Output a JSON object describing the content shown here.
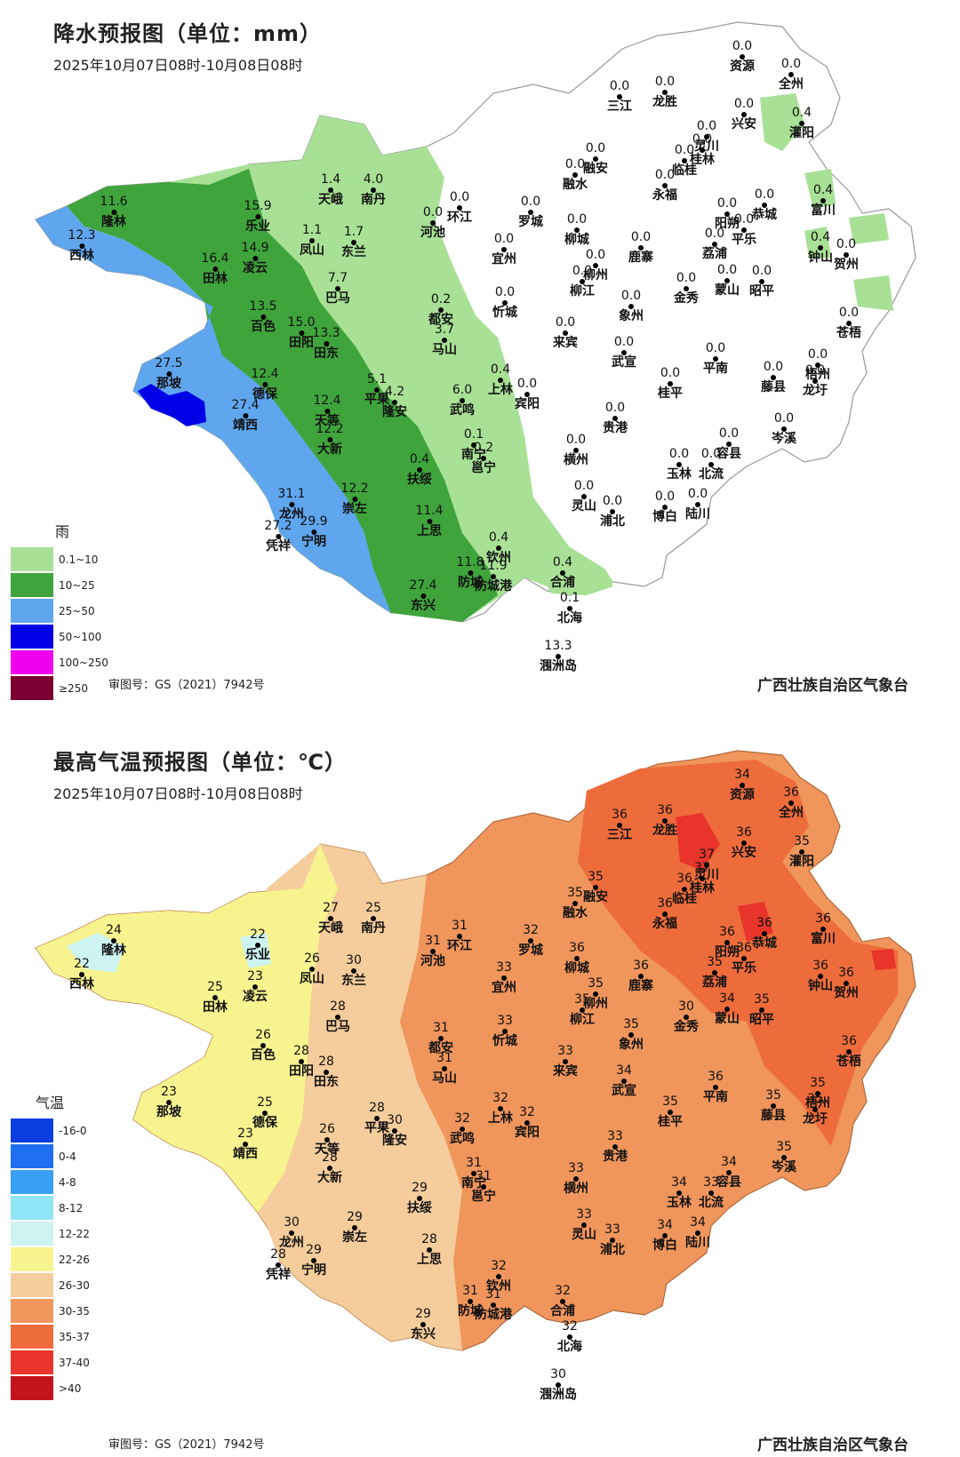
{
  "rain": {
    "title": "降水预报图（单位：mm）",
    "date": "2025年10月07日08时-10月08日08时",
    "legend_title": "雨",
    "legend": [
      {
        "label": "0.1~10",
        "color": "#a8e195"
      },
      {
        "label": "10~25",
        "color": "#3fa43c"
      },
      {
        "label": "25~50",
        "color": "#5fa6ee"
      },
      {
        "label": "50~100",
        "color": "#0000e6"
      },
      {
        "label": "100~250",
        "color": "#f000f0"
      },
      {
        "label": "≥250",
        "color": "#7b0032"
      }
    ],
    "approval": "审图号：GS（2021）7942号",
    "agency": "广西壮族自治区气象台",
    "stations": [
      {
        "name": "资源",
        "value": "0.0"
      },
      {
        "name": "全州",
        "value": "0.0"
      },
      {
        "name": "三江",
        "value": "0.0"
      },
      {
        "name": "龙胜",
        "value": "0.0"
      },
      {
        "name": "兴安",
        "value": "0.0"
      },
      {
        "name": "灌阳",
        "value": "0.4"
      },
      {
        "name": "灵川",
        "value": "0.0"
      },
      {
        "name": "桂林",
        "value": "0.0"
      },
      {
        "name": "临桂",
        "value": "0.0"
      },
      {
        "name": "融安",
        "value": "0.0"
      },
      {
        "name": "融水",
        "value": "0.0"
      },
      {
        "name": "永福",
        "value": "0.0"
      },
      {
        "name": "天峨",
        "value": "1.4"
      },
      {
        "name": "南丹",
        "value": "4.0"
      },
      {
        "name": "隆林",
        "value": "11.6"
      },
      {
        "name": "乐业",
        "value": "15.9"
      },
      {
        "name": "环江",
        "value": "0.0"
      },
      {
        "name": "河池",
        "value": "0.0"
      },
      {
        "name": "罗城",
        "value": "0.0"
      },
      {
        "name": "阳朔",
        "value": "0.0"
      },
      {
        "name": "恭城",
        "value": "0.0"
      },
      {
        "name": "富川",
        "value": "0.4"
      },
      {
        "name": "西林",
        "value": "12.3"
      },
      {
        "name": "凤山",
        "value": "1.1"
      },
      {
        "name": "东兰",
        "value": "1.7"
      },
      {
        "name": "凌云",
        "value": "14.9"
      },
      {
        "name": "宜州",
        "value": "0.0"
      },
      {
        "name": "柳城",
        "value": "0.0"
      },
      {
        "name": "鹿寨",
        "value": "0.0"
      },
      {
        "name": "荔浦",
        "value": "0.0"
      },
      {
        "name": "平乐",
        "value": "0.0"
      },
      {
        "name": "钟山",
        "value": "0.4"
      },
      {
        "name": "贺州",
        "value": "0.0"
      },
      {
        "name": "田林",
        "value": "16.4"
      },
      {
        "name": "巴马",
        "value": "7.7"
      },
      {
        "name": "柳州",
        "value": "0.0"
      },
      {
        "name": "柳江",
        "value": "0.0"
      },
      {
        "name": "蒙山",
        "value": "0.0"
      },
      {
        "name": "昭平",
        "value": "0.0"
      },
      {
        "name": "金秀",
        "value": "0.0"
      },
      {
        "name": "百色",
        "value": "13.5"
      },
      {
        "name": "都安",
        "value": "0.2"
      },
      {
        "name": "忻城",
        "value": "0.0"
      },
      {
        "name": "象州",
        "value": "0.0"
      },
      {
        "name": "田阳",
        "value": "15.0"
      },
      {
        "name": "田东",
        "value": "13.3"
      },
      {
        "name": "马山",
        "value": "3.7"
      },
      {
        "name": "来宾",
        "value": "0.0"
      },
      {
        "name": "苍梧",
        "value": "0.0"
      },
      {
        "name": "武宣",
        "value": "0.0"
      },
      {
        "name": "平南",
        "value": "0.0"
      },
      {
        "name": "藤县",
        "value": "0.0"
      },
      {
        "name": "梧州",
        "value": "0.0"
      },
      {
        "name": "龙圩",
        "value": "0.0"
      },
      {
        "name": "那坡",
        "value": "27.5"
      },
      {
        "name": "德保",
        "value": "12.4"
      },
      {
        "name": "上林",
        "value": "0.4"
      },
      {
        "name": "宾阳",
        "value": "0.0"
      },
      {
        "name": "桂平",
        "value": "0.0"
      },
      {
        "name": "平果",
        "value": "5.1"
      },
      {
        "name": "隆安",
        "value": "4.2"
      },
      {
        "name": "武鸣",
        "value": "6.0"
      },
      {
        "name": "靖西",
        "value": "27.4"
      },
      {
        "name": "天等",
        "value": "12.4"
      },
      {
        "name": "大新",
        "value": "12.2"
      },
      {
        "name": "贵港",
        "value": "0.0"
      },
      {
        "name": "岑溪",
        "value": "0.0"
      },
      {
        "name": "南宁",
        "value": "0.1"
      },
      {
        "name": "邕宁",
        "value": "0.2"
      },
      {
        "name": "横州",
        "value": "0.0"
      },
      {
        "name": "玉林",
        "value": "0.0"
      },
      {
        "name": "北流",
        "value": "0.0"
      },
      {
        "name": "容县",
        "value": "0.0"
      },
      {
        "name": "扶绥",
        "value": "0.4"
      },
      {
        "name": "龙州",
        "value": "31.1"
      },
      {
        "name": "崇左",
        "value": "12.2"
      },
      {
        "name": "宁明",
        "value": "29.9"
      },
      {
        "name": "凭祥",
        "value": "27.2"
      },
      {
        "name": "上思",
        "value": "11.4"
      },
      {
        "name": "灵山",
        "value": "0.0"
      },
      {
        "name": "浦北",
        "value": "0.0"
      },
      {
        "name": "博白",
        "value": "0.0"
      },
      {
        "name": "陆川",
        "value": "0.0"
      },
      {
        "name": "钦州",
        "value": "0.4"
      },
      {
        "name": "防城",
        "value": "11.8"
      },
      {
        "name": "防城港",
        "value": "11.9"
      },
      {
        "name": "合浦",
        "value": "0.4"
      },
      {
        "name": "东兴",
        "value": "27.4"
      },
      {
        "name": "北海",
        "value": "0.1"
      },
      {
        "name": "涠洲岛",
        "value": "13.3"
      }
    ]
  },
  "temp": {
    "title": "最高气温预报图（单位：℃）",
    "date": "2025年10月07日08时-10月08日08时",
    "legend_title": "气温",
    "legend": [
      {
        "label": "-16-0",
        "color": "#0a3ee0"
      },
      {
        "label": "0-4",
        "color": "#1f6ff0"
      },
      {
        "label": "4-8",
        "color": "#3aa0f5"
      },
      {
        "label": "8-12",
        "color": "#8fe4f5"
      },
      {
        "label": "12-22",
        "color": "#cdf3f2"
      },
      {
        "label": "22-26",
        "color": "#f7f48f"
      },
      {
        "label": "26-30",
        "color": "#f5cc9b"
      },
      {
        "label": "30-35",
        "color": "#f0955c"
      },
      {
        "label": "35-37",
        "color": "#ee6c3c"
      },
      {
        "label": "37-40",
        "color": "#e8342a"
      },
      {
        "label": ">40",
        "color": "#c4141b"
      }
    ],
    "approval": "审图号：GS（2021）7942号",
    "agency": "广西壮族自治区气象台",
    "stations": [
      {
        "name": "资源",
        "value": "34"
      },
      {
        "name": "全州",
        "value": "36"
      },
      {
        "name": "三江",
        "value": "36"
      },
      {
        "name": "龙胜",
        "value": "36"
      },
      {
        "name": "兴安",
        "value": "36"
      },
      {
        "name": "灌阳",
        "value": "35"
      },
      {
        "name": "灵川",
        "value": "37"
      },
      {
        "name": "桂林",
        "value": "37"
      },
      {
        "name": "临桂",
        "value": "36"
      },
      {
        "name": "融安",
        "value": "35"
      },
      {
        "name": "融水",
        "value": "35"
      },
      {
        "name": "永福",
        "value": "36"
      },
      {
        "name": "天峨",
        "value": "27"
      },
      {
        "name": "南丹",
        "value": "25"
      },
      {
        "name": "隆林",
        "value": "24"
      },
      {
        "name": "乐业",
        "value": "22"
      },
      {
        "name": "环江",
        "value": "31"
      },
      {
        "name": "河池",
        "value": "31"
      },
      {
        "name": "罗城",
        "value": "32"
      },
      {
        "name": "阳朔",
        "value": "36"
      },
      {
        "name": "恭城",
        "value": "36"
      },
      {
        "name": "富川",
        "value": "36"
      },
      {
        "name": "西林",
        "value": "22"
      },
      {
        "name": "凤山",
        "value": "26"
      },
      {
        "name": "东兰",
        "value": "30"
      },
      {
        "name": "凌云",
        "value": "23"
      },
      {
        "name": "宜州",
        "value": "33"
      },
      {
        "name": "柳城",
        "value": "36"
      },
      {
        "name": "鹿寨",
        "value": "36"
      },
      {
        "name": "荔浦",
        "value": "35"
      },
      {
        "name": "平乐",
        "value": "36"
      },
      {
        "name": "钟山",
        "value": "36"
      },
      {
        "name": "贺州",
        "value": "36"
      },
      {
        "name": "田林",
        "value": "25"
      },
      {
        "name": "巴马",
        "value": "28"
      },
      {
        "name": "柳州",
        "value": "35"
      },
      {
        "name": "柳江",
        "value": "35"
      },
      {
        "name": "蒙山",
        "value": "34"
      },
      {
        "name": "昭平",
        "value": "35"
      },
      {
        "name": "金秀",
        "value": "30"
      },
      {
        "name": "百色",
        "value": "26"
      },
      {
        "name": "都安",
        "value": "31"
      },
      {
        "name": "忻城",
        "value": "33"
      },
      {
        "name": "象州",
        "value": "35"
      },
      {
        "name": "田阳",
        "value": "28"
      },
      {
        "name": "田东",
        "value": "28"
      },
      {
        "name": "马山",
        "value": "31"
      },
      {
        "name": "来宾",
        "value": "33"
      },
      {
        "name": "苍梧",
        "value": "36"
      },
      {
        "name": "武宣",
        "value": "34"
      },
      {
        "name": "平南",
        "value": "36"
      },
      {
        "name": "藤县",
        "value": "35"
      },
      {
        "name": "梧州",
        "value": "35"
      },
      {
        "name": "龙圩",
        "value": "35"
      },
      {
        "name": "那坡",
        "value": "23"
      },
      {
        "name": "德保",
        "value": "25"
      },
      {
        "name": "上林",
        "value": "32"
      },
      {
        "name": "宾阳",
        "value": "32"
      },
      {
        "name": "桂平",
        "value": "35"
      },
      {
        "name": "平果",
        "value": "28"
      },
      {
        "name": "隆安",
        "value": "30"
      },
      {
        "name": "武鸣",
        "value": "32"
      },
      {
        "name": "靖西",
        "value": "23"
      },
      {
        "name": "天等",
        "value": "26"
      },
      {
        "name": "大新",
        "value": "28"
      },
      {
        "name": "贵港",
        "value": "33"
      },
      {
        "name": "岑溪",
        "value": "35"
      },
      {
        "name": "南宁",
        "value": "31"
      },
      {
        "name": "邕宁",
        "value": "31"
      },
      {
        "name": "横州",
        "value": "33"
      },
      {
        "name": "玉林",
        "value": "34"
      },
      {
        "name": "北流",
        "value": "33"
      },
      {
        "name": "容县",
        "value": "34"
      },
      {
        "name": "扶绥",
        "value": "29"
      },
      {
        "name": "龙州",
        "value": "30"
      },
      {
        "name": "崇左",
        "value": "29"
      },
      {
        "name": "宁明",
        "value": "29"
      },
      {
        "name": "凭祥",
        "value": "28"
      },
      {
        "name": "上思",
        "value": "28"
      },
      {
        "name": "灵山",
        "value": "33"
      },
      {
        "name": "浦北",
        "value": "33"
      },
      {
        "name": "博白",
        "value": "34"
      },
      {
        "name": "陆川",
        "value": "34"
      },
      {
        "name": "钦州",
        "value": "32"
      },
      {
        "name": "防城",
        "value": "31"
      },
      {
        "name": "防城港",
        "value": "31"
      },
      {
        "name": "合浦",
        "value": "32"
      },
      {
        "name": "东兴",
        "value": "29"
      },
      {
        "name": "北海",
        "value": "32"
      },
      {
        "name": "涠洲岛",
        "value": "30"
      }
    ]
  }
}
